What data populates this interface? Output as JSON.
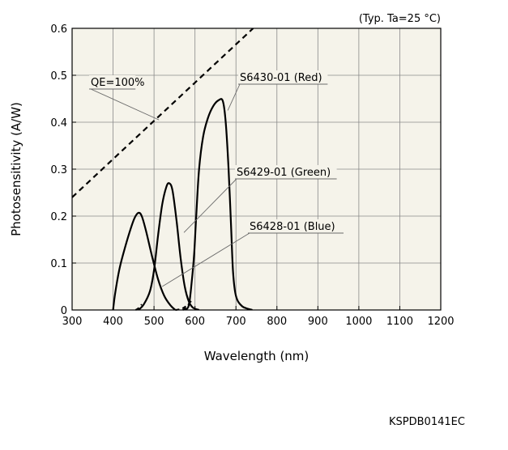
{
  "chart_data": {
    "type": "line",
    "title": "",
    "condition_note": "(Typ. Ta=25 °C)",
    "xlabel": "Wavelength (nm)",
    "ylabel": "Photosensitivity (A/W)",
    "xlim": [
      300,
      1200
    ],
    "ylim": [
      0,
      0.6
    ],
    "xticks": [
      300,
      400,
      500,
      600,
      700,
      800,
      900,
      1000,
      1100,
      1200
    ],
    "yticks": [
      0,
      0.1,
      0.2,
      0.3,
      0.4,
      0.5,
      0.6
    ],
    "ytick_labels": [
      "0",
      "0.1",
      "0.2",
      "0.3",
      "0.4",
      "0.5",
      "0.6"
    ],
    "grid": true,
    "background_color": "#f5f3ea",
    "series": [
      {
        "name": "QE=100%",
        "style": "dashed",
        "color": "#000000",
        "points": [
          [
            300,
            0.24
          ],
          [
            742,
            0.6
          ]
        ]
      },
      {
        "name": "S6428-01 (Blue)",
        "style": "solid",
        "color": "#000000",
        "points": [
          [
            400,
            0
          ],
          [
            405,
            0.035
          ],
          [
            415,
            0.085
          ],
          [
            425,
            0.12
          ],
          [
            440,
            0.165
          ],
          [
            452,
            0.195
          ],
          [
            462,
            0.207
          ],
          [
            470,
            0.2
          ],
          [
            480,
            0.17
          ],
          [
            495,
            0.115
          ],
          [
            510,
            0.065
          ],
          [
            525,
            0.03
          ],
          [
            540,
            0.01
          ],
          [
            552,
            0
          ]
        ]
      },
      {
        "name": "S6429-01 (Green)",
        "style": "solid",
        "color": "#000000",
        "points": [
          [
            462,
            0
          ],
          [
            475,
            0.012
          ],
          [
            490,
            0.04
          ],
          [
            500,
            0.085
          ],
          [
            510,
            0.16
          ],
          [
            520,
            0.225
          ],
          [
            530,
            0.262
          ],
          [
            537,
            0.27
          ],
          [
            545,
            0.255
          ],
          [
            555,
            0.19
          ],
          [
            565,
            0.11
          ],
          [
            575,
            0.05
          ],
          [
            585,
            0.018
          ],
          [
            595,
            0.005
          ],
          [
            610,
            0
          ]
        ]
      },
      {
        "name": "S6430-01 (Red)",
        "style": "solid",
        "color": "#000000",
        "points": [
          [
            575,
            0
          ],
          [
            585,
            0.01
          ],
          [
            592,
            0.06
          ],
          [
            598,
            0.12
          ],
          [
            603,
            0.2
          ],
          [
            610,
            0.3
          ],
          [
            620,
            0.37
          ],
          [
            632,
            0.41
          ],
          [
            645,
            0.435
          ],
          [
            658,
            0.447
          ],
          [
            668,
            0.445
          ],
          [
            675,
            0.4
          ],
          [
            682,
            0.3
          ],
          [
            688,
            0.18
          ],
          [
            693,
            0.08
          ],
          [
            700,
            0.03
          ],
          [
            715,
            0.008
          ],
          [
            740,
            0
          ]
        ]
      }
    ],
    "dashed_tails": [
      {
        "series": "S6428-01 (Blue)",
        "points": [
          [
            552,
            0
          ],
          [
            565,
            0.002
          ],
          [
            578,
            0.008
          ],
          [
            592,
            0.02
          ]
        ]
      },
      {
        "series": "S6429-01 (Green)",
        "points": [
          [
            455,
            0
          ],
          [
            462,
            0.004
          ],
          [
            470,
            0.012
          ]
        ]
      },
      {
        "series": "S6430-01 (Red)",
        "points": [
          [
            570,
            0
          ],
          [
            578,
            0.004
          ],
          [
            585,
            0.012
          ]
        ]
      }
    ],
    "annotations": [
      {
        "text": "QE=100%",
        "target_series": "QE=100%",
        "target_point": [
          512,
          0.405
        ]
      },
      {
        "text": "S6430-01 (Red)",
        "target_series": "S6430-01 (Red)",
        "target_point": [
          680,
          0.425
        ]
      },
      {
        "text": "S6429-01 (Green)",
        "target_series": "S6429-01 (Green)",
        "target_point": [
          573,
          0.165
        ]
      },
      {
        "text": "S6428-01 (Blue)",
        "target_series": "S6428-01 (Blue)",
        "target_point": [
          520,
          0.05
        ]
      }
    ]
  },
  "figure_code": "KSPDB0141EC"
}
